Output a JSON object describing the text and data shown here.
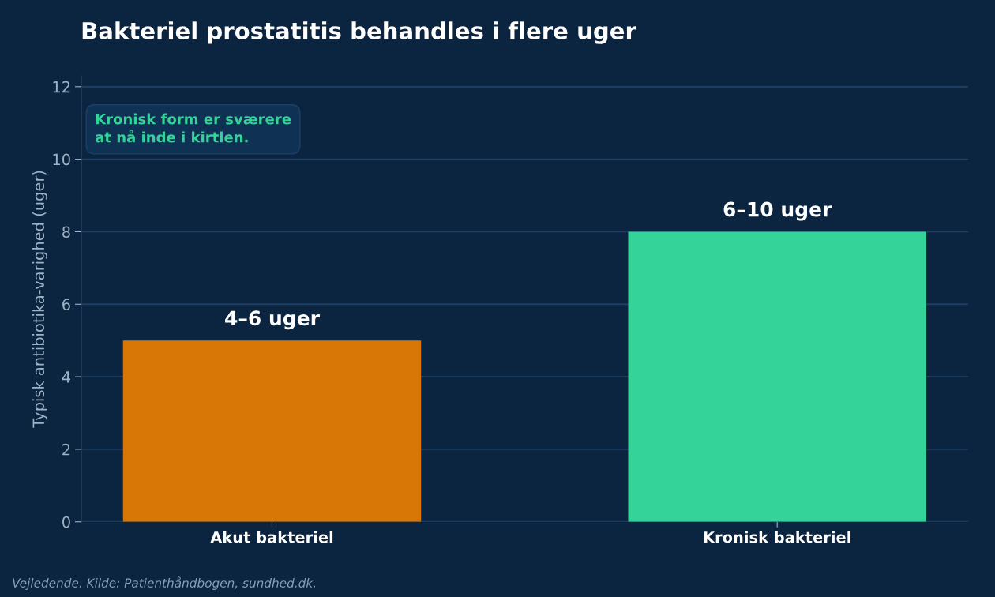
{
  "chart_data": {
    "type": "bar",
    "title": "Bakteriel prostatitis behandles i flere uger",
    "ylabel": "Typisk antibiotika-varighed (uger)",
    "categories": [
      "Akut bakteriel",
      "Kronisk bakteriel"
    ],
    "values": [
      5,
      8
    ],
    "colors": [
      "#d97706",
      "#34d399"
    ],
    "value_labels": [
      "4–6 uger",
      "6–10 uger"
    ],
    "ylim": [
      0,
      12.3
    ],
    "yticks": [
      0,
      2,
      4,
      6,
      8,
      10,
      12
    ],
    "grid": "y",
    "annotations": [
      "Kronisk form er sværere\nat nå inde i kirtlen.",
      "Vejledende. Kilde: Patienthåndbogen, sundhed.dk."
    ]
  }
}
